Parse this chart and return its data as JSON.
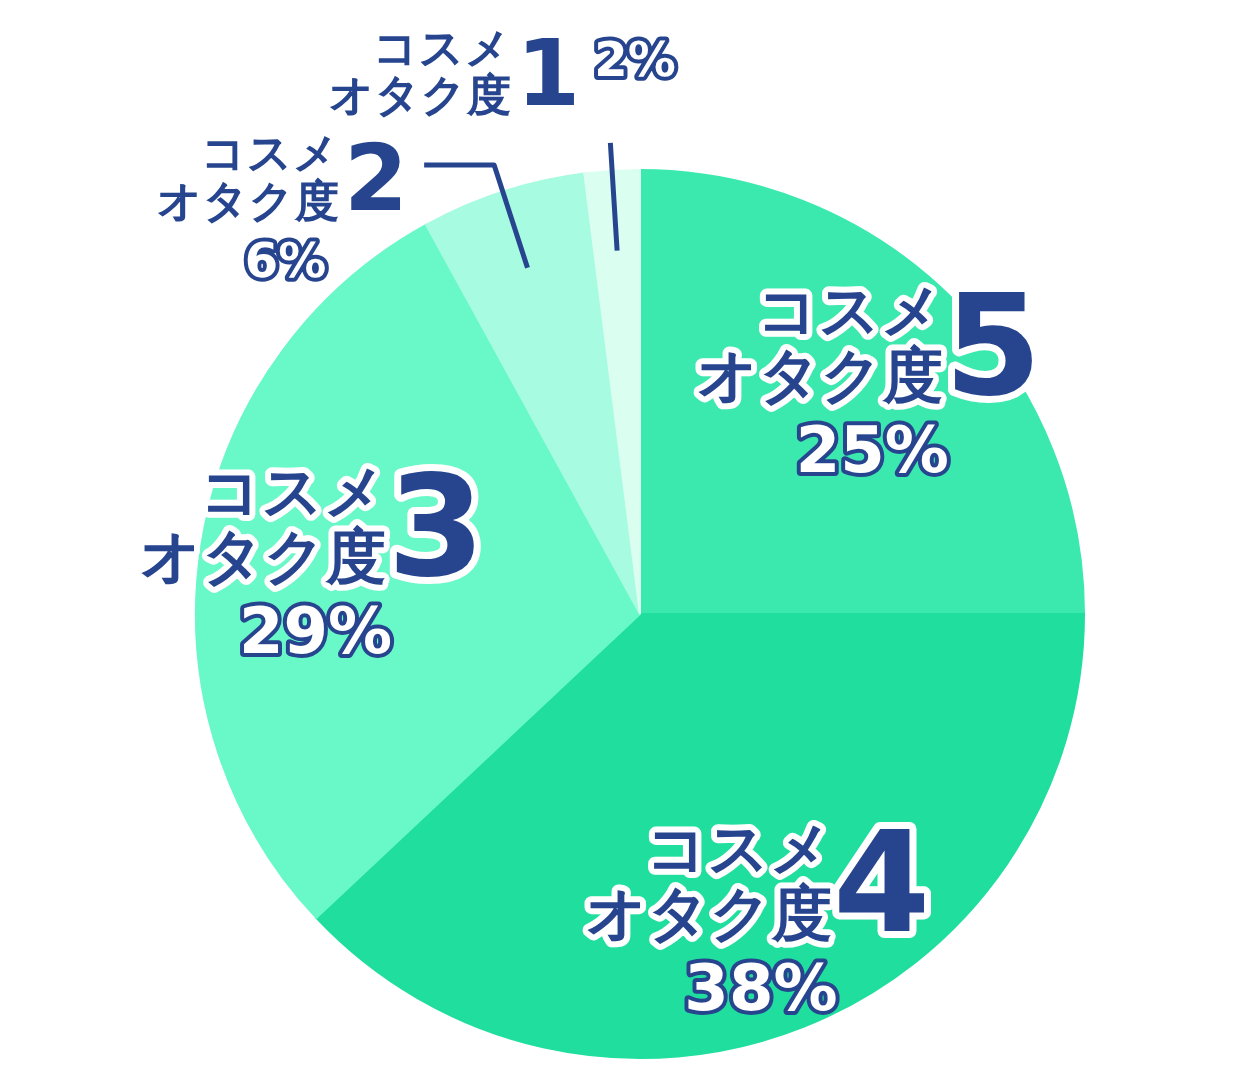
{
  "chart_data": {
    "type": "pie",
    "categories": [
      "コスメオタク度5",
      "コスメオタク度4",
      "コスメオタク度3",
      "コスメオタク度2",
      "コスメオタク度1"
    ],
    "values": [
      25,
      38,
      29,
      6,
      2
    ],
    "value_labels": [
      "25%",
      "38%",
      "29%",
      "6%",
      "2%"
    ],
    "colors": [
      "#3be9ae",
      "#20de9d",
      "#69f8c8",
      "#a7fbe0",
      "#dafff1"
    ]
  }
}
